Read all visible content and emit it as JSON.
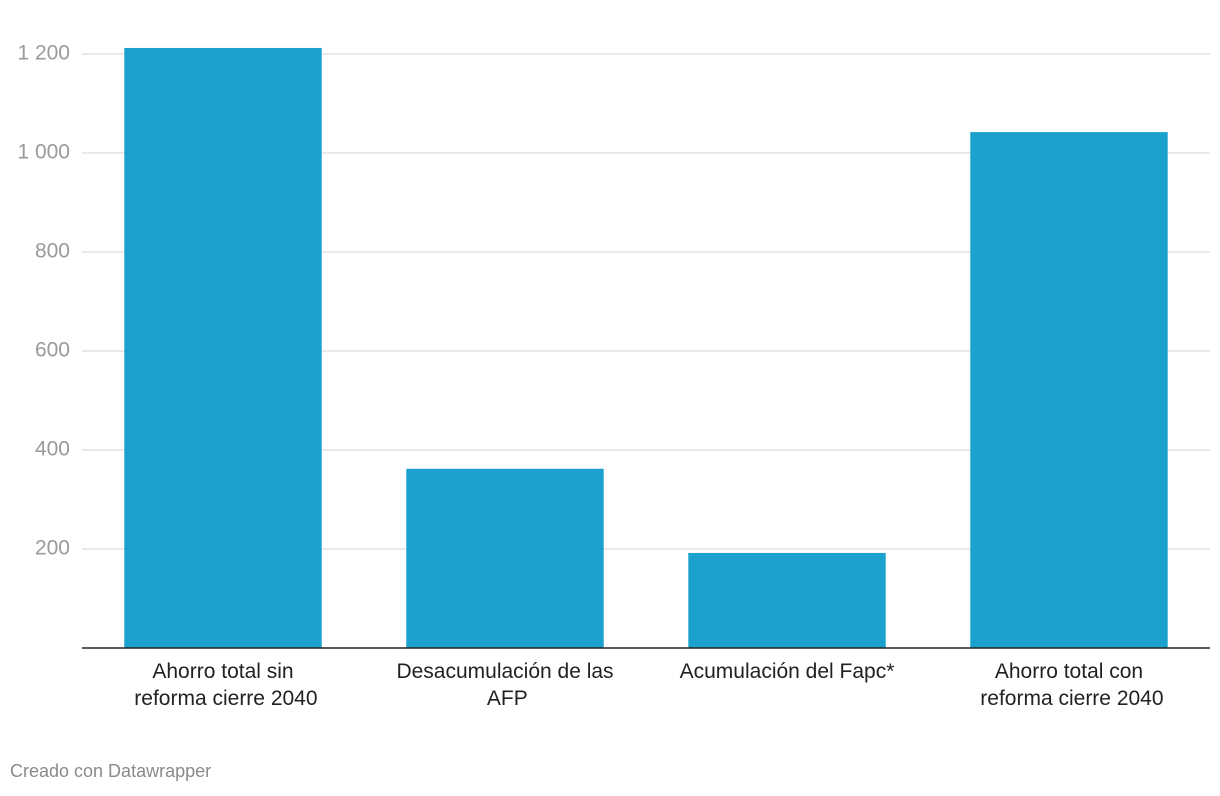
{
  "chart_data": {
    "type": "bar",
    "categories": [
      "Ahorro total sin reforma cierre 2040",
      "Desacumulación de las AFP",
      "Acumulación del Fapc*",
      "Ahorro total con reforma cierre 2040"
    ],
    "values": [
      1212,
      362,
      192,
      1042
    ],
    "color": "#1aa1cd",
    "ylim": [
      0,
      1220
    ],
    "yticks": [
      200,
      400,
      600,
      800,
      {
        "value": 1000,
        "label": "1 000"
      },
      {
        "value": 1200,
        "label": "1 200"
      }
    ],
    "grid": true,
    "credit": "Creado con Datawrapper"
  }
}
